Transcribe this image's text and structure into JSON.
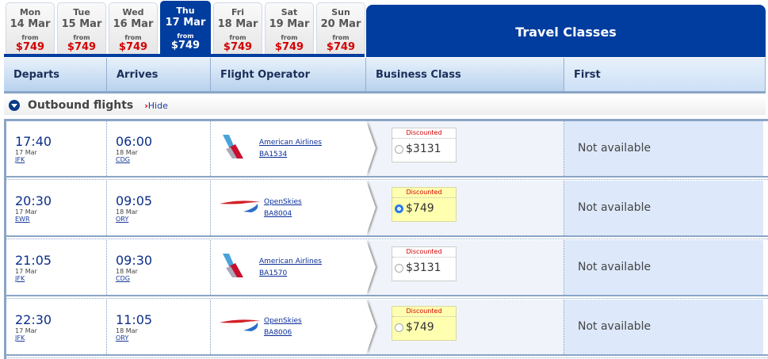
{
  "days": [
    {
      "dow": "Mon",
      "date": "14 Mar",
      "from": "from",
      "price": "$749",
      "selected": false
    },
    {
      "dow": "Tue",
      "date": "15 Mar",
      "from": "from",
      "price": "$749",
      "selected": false
    },
    {
      "dow": "Wed",
      "date": "16 Mar",
      "from": "from",
      "price": "$749",
      "selected": false
    },
    {
      "dow": "Thu",
      "date": "17 Mar",
      "from": "from",
      "price": "$749",
      "selected": true
    },
    {
      "dow": "Fri",
      "date": "18 Mar",
      "from": "from",
      "price": "$749",
      "selected": false
    },
    {
      "dow": "Sat",
      "date": "19 Mar",
      "from": "from",
      "price": "$749",
      "selected": false
    },
    {
      "dow": "Sun",
      "date": "20 Mar",
      "from": "from",
      "price": "$749",
      "selected": false
    }
  ],
  "travel_classes": "Travel Classes",
  "headers": {
    "departs": "Departs",
    "arrives": "Arrives",
    "operator": "Flight Operator",
    "business": "Business Class",
    "first": "First"
  },
  "outbound": {
    "title": "Outbound flights",
    "hide": "Hide"
  },
  "colors": {
    "brand": "#003d9e",
    "price": "#d40000"
  },
  "flights": [
    {
      "dep_time": "17:40",
      "dep_date": "17 Mar",
      "dep_ap": "JFK",
      "arr_time": "06:00",
      "arr_date": "18 Mar",
      "arr_ap": "CDG",
      "airline": "American Airlines",
      "logo": "american-airlines-tail",
      "flight": "BA1534",
      "discount": "Discounted",
      "price": "$3131",
      "selected": false,
      "highlight": false,
      "first": "Not available"
    },
    {
      "dep_time": "20:30",
      "dep_date": "17 Mar",
      "dep_ap": "EWR",
      "arr_time": "09:05",
      "arr_date": "18 Mar",
      "arr_ap": "ORY",
      "airline": "OpenSkies",
      "logo": "speedmarque",
      "flight": "BA8004",
      "discount": "Discounted",
      "price": "$749",
      "selected": true,
      "highlight": true,
      "first": "Not available"
    },
    {
      "dep_time": "21:05",
      "dep_date": "17 Mar",
      "dep_ap": "JFK",
      "arr_time": "09:30",
      "arr_date": "18 Mar",
      "arr_ap": "CDG",
      "airline": "American Airlines",
      "logo": "american-airlines-tail",
      "flight": "BA1570",
      "discount": "Discounted",
      "price": "$3131",
      "selected": false,
      "highlight": false,
      "first": "Not available"
    },
    {
      "dep_time": "22:30",
      "dep_date": "17 Mar",
      "dep_ap": "JFK",
      "arr_time": "11:05",
      "arr_date": "18 Mar",
      "arr_ap": "ORY",
      "airline": "OpenSkies",
      "logo": "speedmarque",
      "flight": "BA8006",
      "discount": "Discounted",
      "price": "$749",
      "selected": false,
      "highlight": true,
      "first": "Not available"
    }
  ]
}
